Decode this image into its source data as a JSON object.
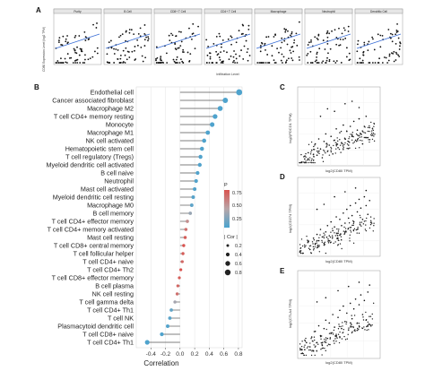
{
  "panels": {
    "a": "A",
    "b": "B",
    "c": "C",
    "d": "D",
    "e": "E"
  },
  "panel_a": {
    "ylabel": "CD80 Expression Level (log2 TPM)",
    "xlabel": "Infiltration Level",
    "subplots": [
      {
        "title": "Purity"
      },
      {
        "title": "B Cell"
      },
      {
        "title": "CD8+ T Cell"
      },
      {
        "title": "CD4+ T Cell"
      },
      {
        "title": "Macrophage"
      },
      {
        "title": "Neutrophil"
      },
      {
        "title": "Dendritic Cell"
      }
    ]
  },
  "panel_b": {
    "legend_p_title": "P",
    "legend_p_ticks": [
      "0.75",
      "0.50",
      "0.25"
    ],
    "legend_cor_title": "| Cor |",
    "legend_cor_items": [
      "0.2",
      "0.4",
      "0.6",
      "0.8"
    ]
  },
  "panel_c": {
    "annotation_p": "p-value = 2.8e-10",
    "annotation_r": "R = 0.3",
    "ylabel": "log2(PDCD1 TPM)",
    "xlabel": "log2(CD80 TPM)"
  },
  "panel_d": {
    "annotation_p": "p-value = 1.7e-10",
    "annotation_r": "R = 0.38",
    "ylabel": "log2(CD274 TPM)",
    "xlabel": "log2(CD80 TPM)"
  },
  "panel_e": {
    "annotation_p": "p-value = 2.7e-10",
    "annotation_r": "R = 0.3",
    "ylabel": "log2(CTLA4 TPM)",
    "xlabel": "log2(CD80 TPM)"
  },
  "chart_data": [
    {
      "type": "scatter",
      "title": "",
      "xlabel": "Correlation",
      "ylabel": "",
      "xlim": [
        -0.6,
        0.85
      ],
      "xticks": [
        "-0.4",
        "-0.2",
        "0.0",
        "0.2",
        "0.4",
        "0.6",
        "0.8"
      ],
      "xtick_values": [
        -0.4,
        -0.2,
        0.0,
        0.2,
        0.4,
        0.6,
        0.8
      ],
      "categories": [
        "Endothelial cell",
        "Cancer associated fibroblast",
        "Macrophage M2",
        "T cell CD4+ memory resting",
        "Monocyte",
        "Macrophage M1",
        "NK cell activated",
        "Hematopoietic stem cell",
        "T cell regulatory (Tregs)",
        "Myeloid dendritic cell activated",
        "B cell naive",
        "Neutrophil",
        "Mast cell activated",
        "Myeloid dendritic cell resting",
        "Macrophage M0",
        "B cell memory",
        "T cell CD4+ effector memory",
        "T cell CD4+ memory activated",
        "Mast cell resting",
        "T cell CD8+ central memory",
        "T cell follicular helper",
        "T cell CD4+ naive",
        "T cell CD4+ Th2",
        "T cell CD8+ effector memory",
        "B cell plasma",
        "NK cell resting",
        "T cell gamma delta",
        "T cell CD4+ Th1",
        "T cell NK",
        "Plasmacytoid dendritic cell",
        "T cell CD8+ naive",
        "T cell CD4+ Th1"
      ],
      "values": [
        0.81,
        0.62,
        0.55,
        0.48,
        0.44,
        0.38,
        0.33,
        0.3,
        0.28,
        0.27,
        0.24,
        0.22,
        0.2,
        0.18,
        0.16,
        0.14,
        0.1,
        0.08,
        0.07,
        0.05,
        0.04,
        0.03,
        0.01,
        -0.01,
        -0.03,
        -0.04,
        -0.07,
        -0.12,
        -0.14,
        -0.17,
        -0.25,
        -0.45
      ],
      "pvalues": [
        0.02,
        0.02,
        0.02,
        0.02,
        0.02,
        0.02,
        0.02,
        0.03,
        0.03,
        0.03,
        0.03,
        0.04,
        0.04,
        0.05,
        0.08,
        0.3,
        0.55,
        0.7,
        0.8,
        0.85,
        0.8,
        0.75,
        0.85,
        0.8,
        0.75,
        0.7,
        0.35,
        0.1,
        0.06,
        0.04,
        0.02,
        0.02
      ],
      "legend": "right",
      "grid": true
    },
    {
      "type": "scatter",
      "title": "",
      "xlabel": "log2(CD80 TPM)",
      "ylabel": "log2(PDCD1 TPM)",
      "grid": true,
      "points": [
        [
          0.3,
          0.4
        ],
        [
          0.5,
          0.9
        ],
        [
          0.7,
          1.1
        ],
        [
          0.8,
          0.3
        ],
        [
          0.9,
          1.6
        ],
        [
          1.0,
          0.7
        ],
        [
          1.1,
          2.0
        ],
        [
          1.2,
          1.2
        ],
        [
          1.3,
          0.5
        ],
        [
          1.4,
          1.8
        ],
        [
          1.5,
          2.4
        ],
        [
          1.6,
          1.0
        ],
        [
          1.7,
          1.5
        ],
        [
          1.8,
          2.2
        ],
        [
          1.9,
          0.8
        ],
        [
          2.0,
          1.9
        ],
        [
          2.1,
          2.8
        ],
        [
          2.2,
          1.3
        ],
        [
          2.3,
          2.5
        ],
        [
          2.4,
          1.7
        ],
        [
          2.5,
          3.1
        ],
        [
          2.6,
          2.0
        ],
        [
          2.7,
          2.6
        ],
        [
          2.8,
          1.5
        ],
        [
          2.9,
          3.0
        ],
        [
          3.0,
          2.2
        ],
        [
          3.1,
          3.4
        ],
        [
          3.2,
          1.9
        ],
        [
          3.3,
          2.7
        ],
        [
          3.4,
          3.6
        ],
        [
          3.5,
          2.4
        ],
        [
          3.6,
          1.6
        ],
        [
          3.7,
          3.0
        ],
        [
          3.8,
          3.8
        ],
        [
          3.9,
          2.1
        ],
        [
          4.0,
          2.9
        ],
        [
          1.2,
          3.8
        ],
        [
          2.0,
          4.2
        ],
        [
          2.6,
          4.8
        ],
        [
          3.0,
          5.0
        ],
        [
          1.6,
          4.4
        ],
        [
          3.4,
          4.5
        ]
      ]
    },
    {
      "type": "scatter",
      "title": "",
      "xlabel": "log2(CD80 TPM)",
      "ylabel": "log2(CD274 TPM)",
      "grid": true,
      "points": [
        [
          0.3,
          0.6
        ],
        [
          0.5,
          1.0
        ],
        [
          0.6,
          0.4
        ],
        [
          0.8,
          1.3
        ],
        [
          0.9,
          0.8
        ],
        [
          1.0,
          1.6
        ],
        [
          1.1,
          1.1
        ],
        [
          1.2,
          2.0
        ],
        [
          1.3,
          1.4
        ],
        [
          1.4,
          0.9
        ],
        [
          1.5,
          1.8
        ],
        [
          1.6,
          2.3
        ],
        [
          1.7,
          1.5
        ],
        [
          1.8,
          2.6
        ],
        [
          1.9,
          1.9
        ],
        [
          2.0,
          2.2
        ],
        [
          2.1,
          3.0
        ],
        [
          2.2,
          1.7
        ],
        [
          2.3,
          2.8
        ],
        [
          2.4,
          2.3
        ],
        [
          2.5,
          3.3
        ],
        [
          2.6,
          2.5
        ],
        [
          2.7,
          3.6
        ],
        [
          2.8,
          2.9
        ],
        [
          2.9,
          3.9
        ],
        [
          3.0,
          3.1
        ],
        [
          3.1,
          2.6
        ],
        [
          3.2,
          4.1
        ],
        [
          3.3,
          3.4
        ],
        [
          3.4,
          4.4
        ],
        [
          3.5,
          3.7
        ],
        [
          3.6,
          2.8
        ],
        [
          3.7,
          4.6
        ],
        [
          3.8,
          3.9
        ],
        [
          3.9,
          3.2
        ],
        [
          4.0,
          4.3
        ],
        [
          1.4,
          4.0
        ],
        [
          2.0,
          4.6
        ],
        [
          2.6,
          5.0
        ],
        [
          3.2,
          5.3
        ],
        [
          1.0,
          3.6
        ],
        [
          3.8,
          5.1
        ]
      ]
    },
    {
      "type": "scatter",
      "title": "",
      "xlabel": "log2(CD80 TPM)",
      "ylabel": "log2(CTLA4 TPM)",
      "grid": true,
      "points": [
        [
          0.3,
          0.5
        ],
        [
          0.4,
          1.0
        ],
        [
          0.6,
          0.7
        ],
        [
          0.7,
          1.4
        ],
        [
          0.8,
          0.4
        ],
        [
          0.9,
          1.8
        ],
        [
          1.0,
          1.0
        ],
        [
          1.1,
          2.2
        ],
        [
          1.2,
          1.5
        ],
        [
          1.3,
          0.8
        ],
        [
          1.4,
          2.0
        ],
        [
          1.5,
          2.6
        ],
        [
          1.6,
          1.3
        ],
        [
          1.7,
          2.4
        ],
        [
          1.8,
          1.7
        ],
        [
          1.9,
          3.0
        ],
        [
          2.0,
          2.1
        ],
        [
          2.1,
          1.5
        ],
        [
          2.2,
          2.8
        ],
        [
          2.3,
          3.3
        ],
        [
          2.4,
          2.0
        ],
        [
          2.5,
          3.6
        ],
        [
          2.6,
          2.5
        ],
        [
          2.7,
          3.1
        ],
        [
          2.8,
          1.9
        ],
        [
          2.9,
          3.8
        ],
        [
          3.0,
          2.7
        ],
        [
          3.1,
          3.4
        ],
        [
          3.2,
          4.1
        ],
        [
          3.3,
          2.4
        ],
        [
          3.4,
          3.7
        ],
        [
          3.5,
          4.4
        ],
        [
          3.6,
          3.0
        ],
        [
          3.7,
          4.0
        ],
        [
          3.8,
          2.6
        ],
        [
          3.9,
          4.6
        ],
        [
          1.5,
          4.2
        ],
        [
          2.2,
          4.7
        ],
        [
          2.8,
          5.0
        ],
        [
          3.4,
          5.3
        ],
        [
          1.0,
          3.9
        ],
        [
          4.0,
          5.1
        ]
      ]
    }
  ]
}
